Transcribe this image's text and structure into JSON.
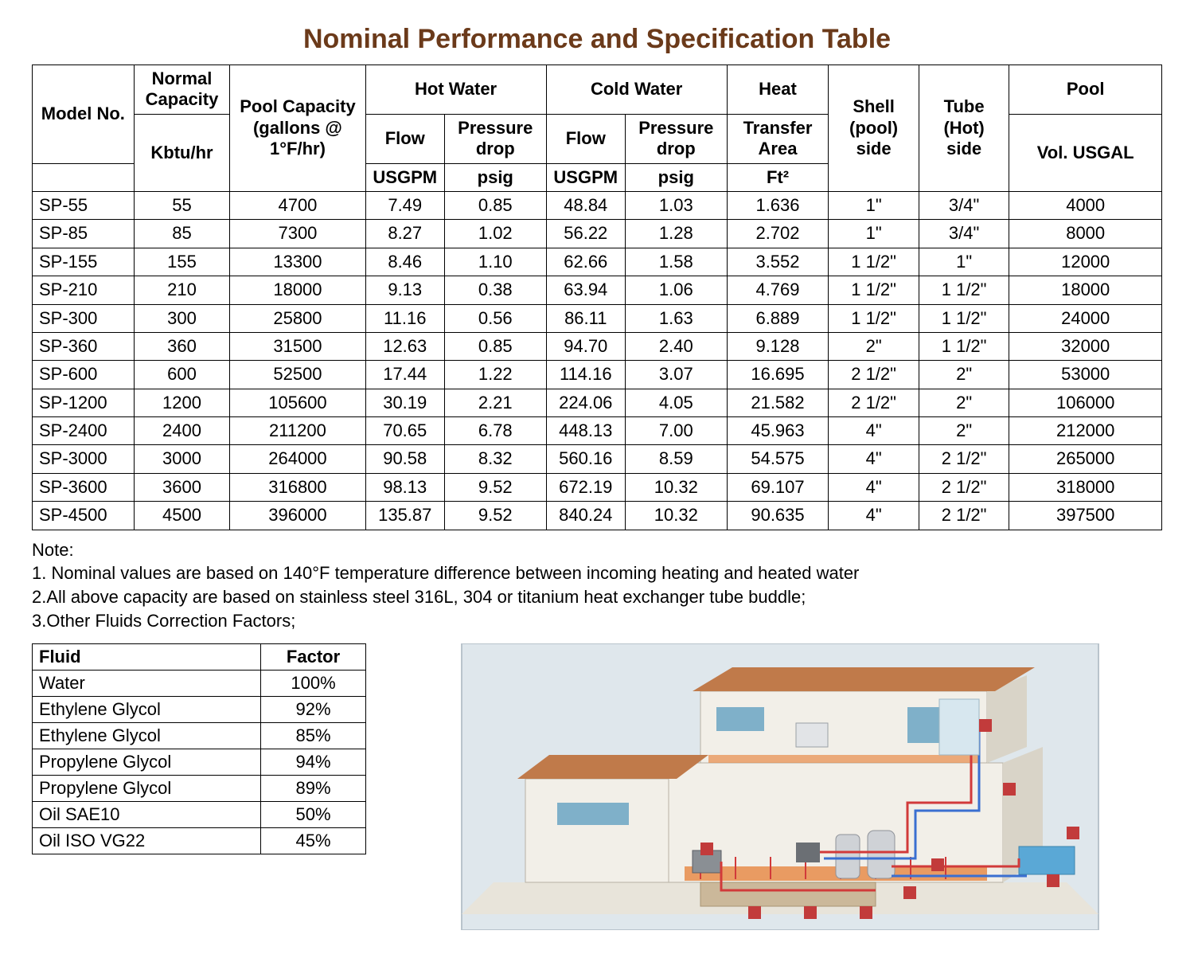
{
  "title": "Nominal Performance and Specification Table",
  "colors": {
    "title_color": "#6b3a1a",
    "border_color": "#000000",
    "text_color": "#000000",
    "background": "#ffffff",
    "diagram": {
      "roof": "#c07a4a",
      "wall_light": "#f2efe8",
      "wall_shadow": "#d9d4c8",
      "ground": "#e8e4da",
      "floor_orange": "#e88c4a",
      "pipe_red": "#d13a3a",
      "pipe_blue": "#3a6fd1",
      "window": "#7fb0c9",
      "pool": "#5aa8d6",
      "label_box": "#c23b3b",
      "tank_gray": "#cfd2d6",
      "sky_frame": "#dfe7ec"
    }
  },
  "spec_table": {
    "header": {
      "model_no": "Model No.",
      "normal_capacity": "Normal Capacity",
      "pool_capacity": "Pool Capacity (gallons @ 1°F/hr)",
      "hot_water": "Hot Water",
      "cold_water": "Cold Water",
      "heat": "Heat",
      "shell_side": "Shell (pool) side",
      "tube_side": "Tube (Hot) side",
      "pool": "Pool",
      "flow": "Flow",
      "pressure_drop": "Pressure drop",
      "transfer_area": "Transfer Area",
      "vol_usgal": "Vol. USGAL",
      "kbtu_hr": "Kbtu/hr",
      "usgpm": "USGPM",
      "psig": "psig",
      "ft2": "Ft²"
    },
    "col_widths_pct": [
      9,
      8.5,
      12,
      7,
      9,
      7,
      9,
      9,
      8,
      8,
      13.5
    ],
    "rows": [
      {
        "model": "SP-55",
        "cap": "55",
        "pool_cap": "4700",
        "hf": "7.49",
        "hp": "0.85",
        "cf": "48.84",
        "cp": "1.03",
        "area": "1.636",
        "shell": "1\"",
        "tube": "3/4\"",
        "vol": "4000"
      },
      {
        "model": "SP-85",
        "cap": "85",
        "pool_cap": "7300",
        "hf": "8.27",
        "hp": "1.02",
        "cf": "56.22",
        "cp": "1.28",
        "area": "2.702",
        "shell": "1\"",
        "tube": "3/4\"",
        "vol": "8000"
      },
      {
        "model": "SP-155",
        "cap": "155",
        "pool_cap": "13300",
        "hf": "8.46",
        "hp": "1.10",
        "cf": "62.66",
        "cp": "1.58",
        "area": "3.552",
        "shell": "1 1/2\"",
        "tube": "1\"",
        "vol": "12000"
      },
      {
        "model": "SP-210",
        "cap": "210",
        "pool_cap": "18000",
        "hf": "9.13",
        "hp": "0.38",
        "cf": "63.94",
        "cp": "1.06",
        "area": "4.769",
        "shell": "1 1/2\"",
        "tube": "1 1/2\"",
        "vol": "18000"
      },
      {
        "model": "SP-300",
        "cap": "300",
        "pool_cap": "25800",
        "hf": "11.16",
        "hp": "0.56",
        "cf": "86.11",
        "cp": "1.63",
        "area": "6.889",
        "shell": "1 1/2\"",
        "tube": "1 1/2\"",
        "vol": "24000"
      },
      {
        "model": "SP-360",
        "cap": "360",
        "pool_cap": "31500",
        "hf": "12.63",
        "hp": "0.85",
        "cf": "94.70",
        "cp": "2.40",
        "area": "9.128",
        "shell": "2\"",
        "tube": "1 1/2\"",
        "vol": "32000"
      },
      {
        "model": "SP-600",
        "cap": "600",
        "pool_cap": "52500",
        "hf": "17.44",
        "hp": "1.22",
        "cf": "114.16",
        "cp": "3.07",
        "area": "16.695",
        "shell": "2 1/2\"",
        "tube": "2\"",
        "vol": "53000"
      },
      {
        "model": "SP-1200",
        "cap": "1200",
        "pool_cap": "105600",
        "hf": "30.19",
        "hp": "2.21",
        "cf": "224.06",
        "cp": "4.05",
        "area": "21.582",
        "shell": "2 1/2\"",
        "tube": "2\"",
        "vol": "106000"
      },
      {
        "model": "SP-2400",
        "cap": "2400",
        "pool_cap": "211200",
        "hf": "70.65",
        "hp": "6.78",
        "cf": "448.13",
        "cp": "7.00",
        "area": "45.963",
        "shell": "4\"",
        "tube": "2\"",
        "vol": "212000"
      },
      {
        "model": "SP-3000",
        "cap": "3000",
        "pool_cap": "264000",
        "hf": "90.58",
        "hp": "8.32",
        "cf": "560.16",
        "cp": "8.59",
        "area": "54.575",
        "shell": "4\"",
        "tube": "2 1/2\"",
        "vol": "265000"
      },
      {
        "model": "SP-3600",
        "cap": "3600",
        "pool_cap": "316800",
        "hf": "98.13",
        "hp": "9.52",
        "cf": "672.19",
        "cp": "10.32",
        "area": "69.107",
        "shell": "4\"",
        "tube": "2 1/2\"",
        "vol": "318000"
      },
      {
        "model": "SP-4500",
        "cap": "4500",
        "pool_cap": "396000",
        "hf": "135.87",
        "hp": "9.52",
        "cf": "840.24",
        "cp": "10.32",
        "area": "90.635",
        "shell": "4\"",
        "tube": "2 1/2\"",
        "vol": "397500"
      }
    ]
  },
  "notes": {
    "heading": "Note:",
    "items": [
      "1. Nominal values are based on 140°F temperature difference between incoming heating and heated water",
      "2.All above capacity are based on stainless steel 316L, 304 or titanium heat exchanger tube buddle;",
      "3.Other Fluids Correction Factors;"
    ]
  },
  "factors_table": {
    "header": {
      "fluid": "Fluid",
      "factor": "Factor"
    },
    "rows": [
      {
        "fluid": "Water",
        "factor": "100%"
      },
      {
        "fluid": "Ethylene Glycol",
        "factor": "92%"
      },
      {
        "fluid": "Ethylene Glycol",
        "factor": "85%"
      },
      {
        "fluid": "Propylene Glycol",
        "factor": "94%"
      },
      {
        "fluid": "Propylene Glycol",
        "factor": "89%"
      },
      {
        "fluid": "Oil SAE10",
        "factor": "50%"
      },
      {
        "fluid": "Oil ISO VG22",
        "factor": "45%"
      }
    ]
  }
}
